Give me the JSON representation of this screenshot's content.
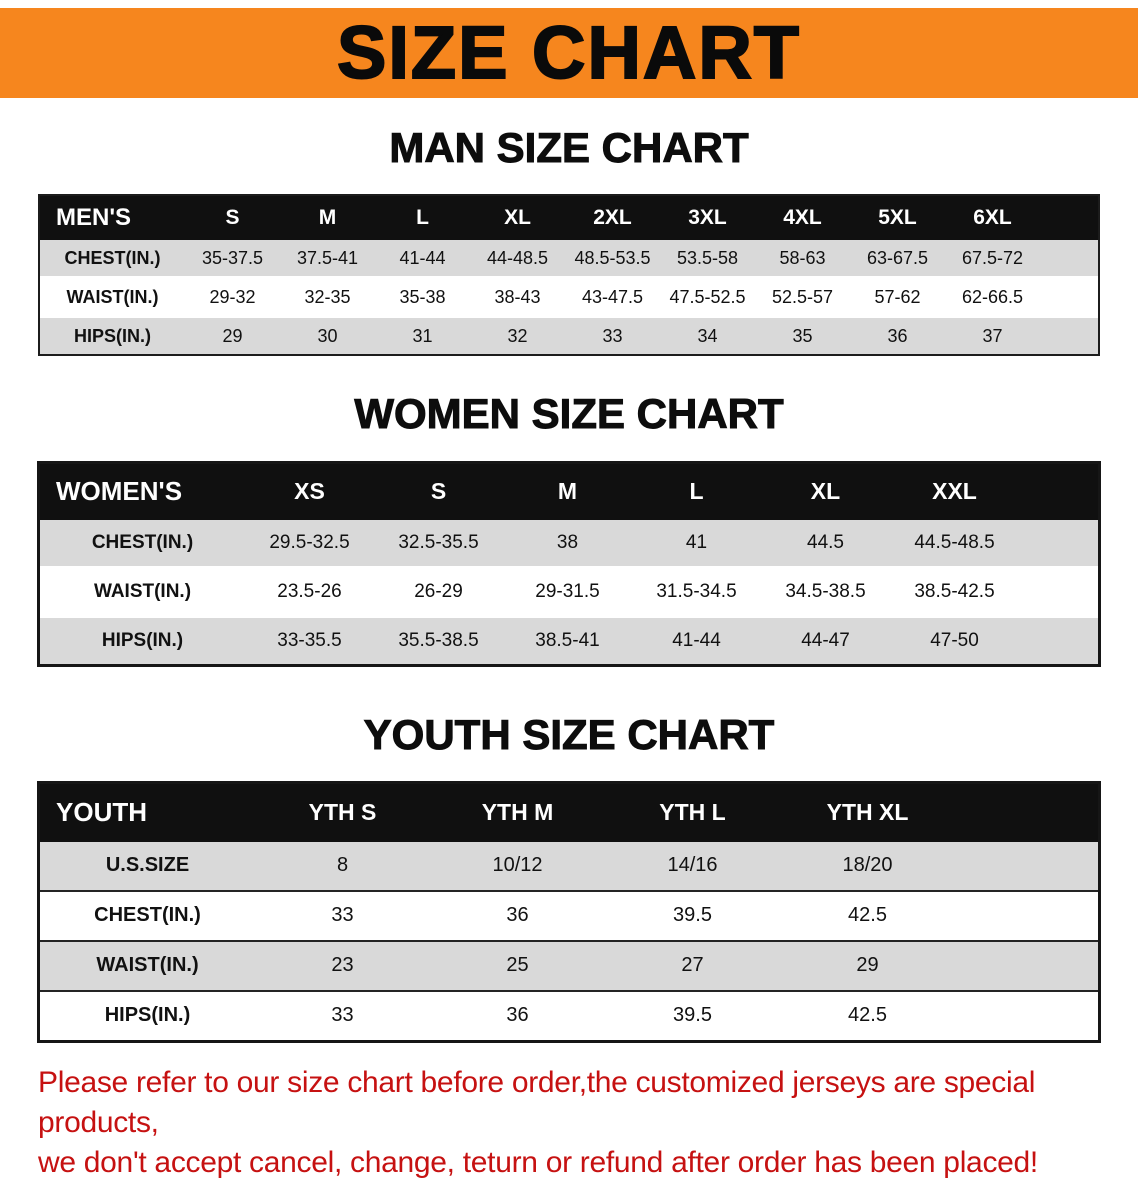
{
  "banner": {
    "title": "SIZE CHART"
  },
  "sections": [
    {
      "id": "men",
      "heading": "MAN SIZE CHART",
      "header": [
        "MEN'S",
        "S",
        "M",
        "L",
        "XL",
        "2XL",
        "3XL",
        "4XL",
        "5XL",
        "6XL"
      ],
      "rows": [
        [
          "CHEST(IN.)",
          "35-37.5",
          "37.5-41",
          "41-44",
          "44-48.5",
          "48.5-53.5",
          "53.5-58",
          "58-63",
          "63-67.5",
          "67.5-72"
        ],
        [
          "WAIST(IN.)",
          "29-32",
          "32-35",
          "35-38",
          "38-43",
          "43-47.5",
          "47.5-52.5",
          "52.5-57",
          "57-62",
          "62-66.5"
        ],
        [
          "HIPS(IN.)",
          "29",
          "30",
          "31",
          "32",
          "33",
          "34",
          "35",
          "36",
          "37"
        ]
      ]
    },
    {
      "id": "women",
      "heading": "WOMEN SIZE CHART",
      "header": [
        "WOMEN'S",
        "XS",
        "S",
        "M",
        "L",
        "XL",
        "XXL"
      ],
      "rows": [
        [
          "CHEST(IN.)",
          "29.5-32.5",
          "32.5-35.5",
          "38",
          "41",
          "44.5",
          "44.5-48.5"
        ],
        [
          "WAIST(IN.)",
          "23.5-26",
          "26-29",
          "29-31.5",
          "31.5-34.5",
          "34.5-38.5",
          "38.5-42.5"
        ],
        [
          "HIPS(IN.)",
          "33-35.5",
          "35.5-38.5",
          "38.5-41",
          "41-44",
          "44-47",
          "47-50"
        ]
      ]
    },
    {
      "id": "youth",
      "heading": "YOUTH SIZE CHART",
      "header": [
        "YOUTH",
        "YTH S",
        "YTH M",
        "YTH L",
        "YTH XL"
      ],
      "rows": [
        [
          "U.S.SIZE",
          "8",
          "10/12",
          "14/16",
          "18/20"
        ],
        [
          "CHEST(IN.)",
          "33",
          "36",
          "39.5",
          "42.5"
        ],
        [
          "WAIST(IN.)",
          "23",
          "25",
          "27",
          "29"
        ],
        [
          "HIPS(IN.)",
          "33",
          "36",
          "39.5",
          "42.5"
        ]
      ]
    }
  ],
  "disclaimer": {
    "line1": "Please refer to our size chart before order,the customized jerseys are special products,",
    "line2": "we don't accept cancel, change, teturn or refund after order has been placed!"
  },
  "colors": {
    "banner_bg": "#f6861e",
    "table_header_bg": "#101010",
    "row_stripe": "#d9d9d9",
    "disclaimer_red": "#c61111"
  }
}
